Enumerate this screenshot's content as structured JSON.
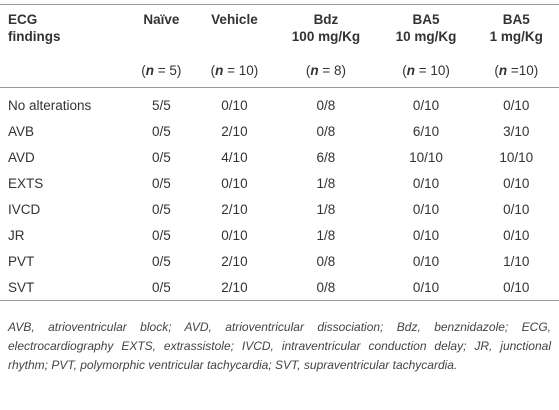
{
  "table": {
    "header": [
      {
        "lines": [
          "ECG",
          "findings"
        ],
        "n": []
      },
      {
        "lines": [
          "Naïve"
        ],
        "n": [
          "(",
          "n",
          " = 5)"
        ]
      },
      {
        "lines": [
          "Vehicle"
        ],
        "n": [
          "(",
          "n",
          " = 10)"
        ]
      },
      {
        "lines": [
          "Bdz",
          "100 mg/Kg"
        ],
        "n": [
          "(",
          "n",
          " = 8)"
        ]
      },
      {
        "lines": [
          "BA5",
          "10 mg/Kg"
        ],
        "n": [
          "(",
          "n",
          " = 10)"
        ]
      },
      {
        "lines": [
          "BA5",
          "1 mg/Kg"
        ],
        "n": [
          "(",
          "n",
          " =10)"
        ]
      }
    ],
    "rows": [
      [
        "No alterations",
        "5/5",
        "0/10",
        "0/8",
        "0/10",
        "0/10"
      ],
      [
        "AVB",
        "0/5",
        "2/10",
        "0/8",
        "6/10",
        "3/10"
      ],
      [
        "AVD",
        "0/5",
        "4/10",
        "6/8",
        "10/10",
        "10/10"
      ],
      [
        "EXTS",
        "0/5",
        "0/10",
        "1/8",
        "0/10",
        "0/10"
      ],
      [
        "IVCD",
        "0/5",
        "2/10",
        "1/8",
        "0/10",
        "0/10"
      ],
      [
        "JR",
        "0/5",
        "0/10",
        "1/8",
        "0/10",
        "0/10"
      ],
      [
        "PVT",
        "0/5",
        "2/10",
        "0/8",
        "0/10",
        "1/10"
      ],
      [
        "SVT",
        "0/5",
        "2/10",
        "0/8",
        "0/10",
        "0/10"
      ]
    ],
    "footnote": "AVB, atrioventricular block; AVD, atrioventricular dissociation; Bdz, benznidazole; ECG, electrocardiography EXTS, extrassistole; IVCD, intraventricular conduction delay; JR, junctional rhythm; PVT, polymorphic ventricular tachycardia; SVT, supraventricular tachycardia."
  }
}
